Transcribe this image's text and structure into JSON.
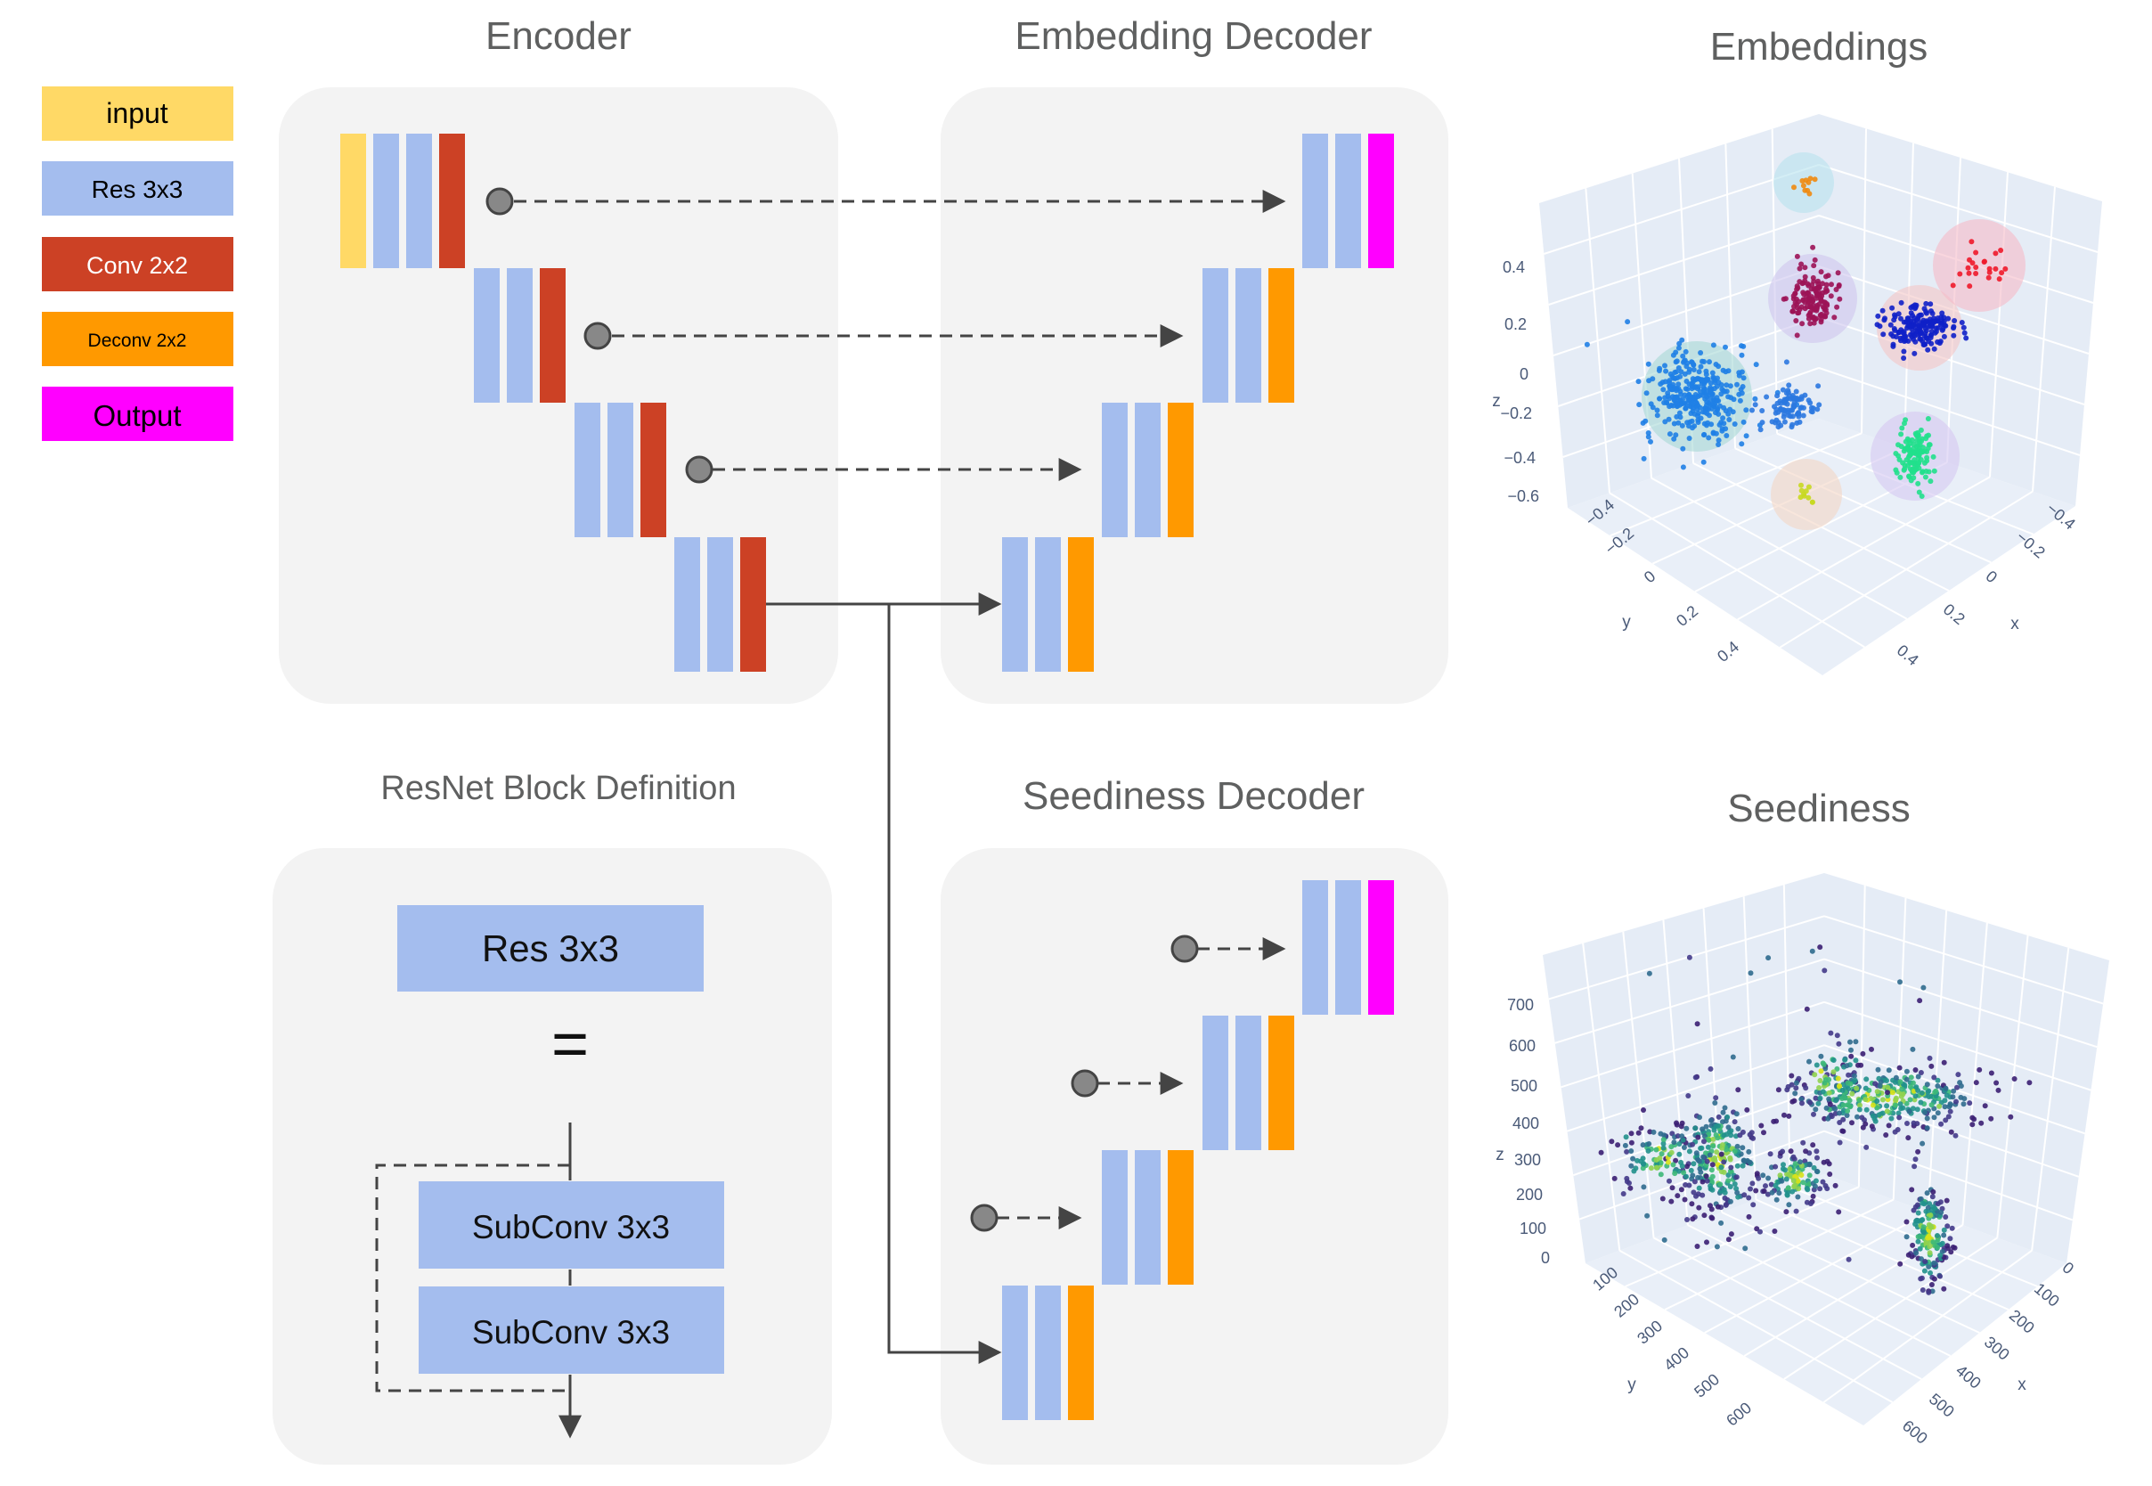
{
  "legend": {
    "input": "input",
    "res": "Res 3x3",
    "conv": "Conv 2x2",
    "deconv": "Deconv 2x2",
    "output": "Output"
  },
  "titles": {
    "encoder": "Encoder",
    "embedding_decoder": "Embedding Decoder",
    "resnet_block": "ResNet Block Definition",
    "seediness_decoder": "Seediness Decoder",
    "embeddings": "Embeddings",
    "seediness": "Seediness"
  },
  "resnet_block": {
    "res_label": "Res 3x3",
    "equals": "=",
    "subconv_1": "SubConv 3x3",
    "subconv_2": "SubConv 3x3"
  },
  "colors": {
    "input": "#ffd966",
    "res": "#a4bdee",
    "conv": "#cc4125",
    "deconv": "#ff9900",
    "output": "#ff00ff",
    "panel": "#f3f3f3",
    "connector": "#444444"
  },
  "embeddings_plot": {
    "z_ticks": [
      "0.4",
      "0.2",
      "0",
      "−0.2",
      "−0.4",
      "−0.6"
    ],
    "y_ticks": [
      "−0.4",
      "−0.2",
      "0",
      "0.2",
      "0.4"
    ],
    "x_ticks": [
      "−0.4",
      "−0.2",
      "0",
      "0.2",
      "0.4"
    ],
    "z_label": "z",
    "y_label": "y",
    "x_label": "x"
  },
  "seediness_plot": {
    "z_ticks": [
      "700",
      "600",
      "500",
      "400",
      "300",
      "200",
      "100",
      "0"
    ],
    "y_ticks": [
      "100",
      "200",
      "300",
      "400",
      "500",
      "600"
    ],
    "x_ticks": [
      "0",
      "100",
      "200",
      "300",
      "400",
      "500",
      "600"
    ],
    "z_label": "z",
    "y_label": "y",
    "x_label": "x"
  }
}
